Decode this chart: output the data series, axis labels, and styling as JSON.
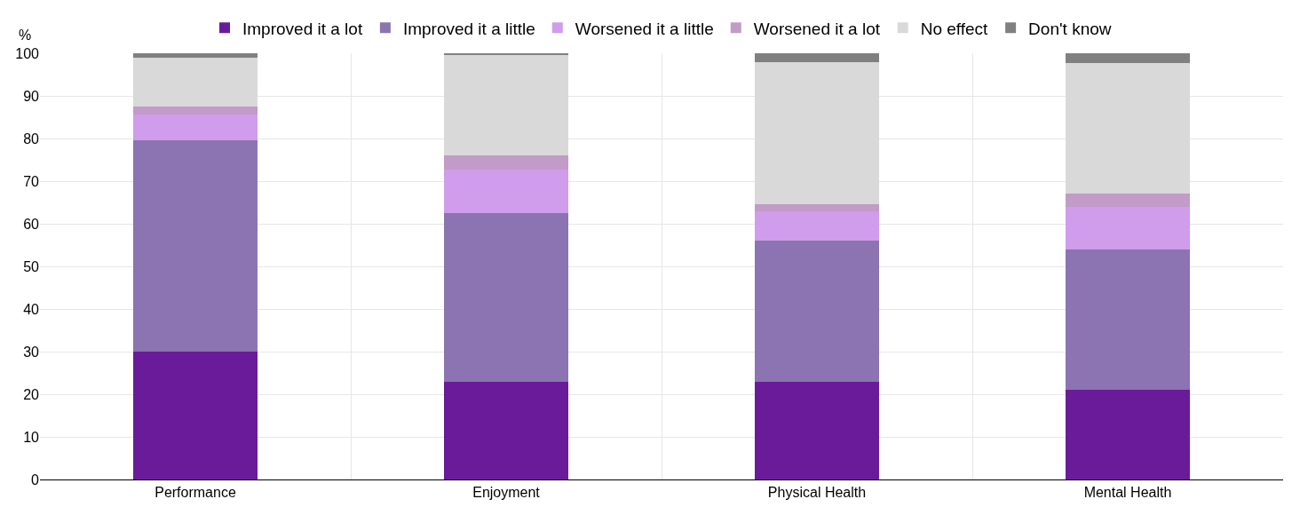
{
  "chart_data": {
    "type": "bar",
    "stacked": true,
    "ylabel": "%",
    "categories": [
      "Performance",
      "Enjoyment",
      "Physical Health",
      "Mental Health"
    ],
    "series": [
      {
        "name": "Improved it a lot",
        "color": "#6a1b9a",
        "values": [
          30,
          23,
          23,
          21
        ]
      },
      {
        "name": "Improved it a little",
        "color": "#8b74b1",
        "values": [
          49.5,
          39.6,
          33,
          33
        ]
      },
      {
        "name": "Worsened it a little",
        "color": "#d09cec",
        "values": [
          6.2,
          10.2,
          7,
          10
        ]
      },
      {
        "name": "Worsened it a lot",
        "color": "#c29bc8",
        "values": [
          1.9,
          3.2,
          1.5,
          3
        ]
      },
      {
        "name": "No effect",
        "color": "#d9d9d9",
        "values": [
          11.3,
          23.5,
          33.5,
          30.8
        ]
      },
      {
        "name": "Don't know",
        "color": "#808080",
        "values": [
          1.1,
          0.5,
          2,
          2.2
        ]
      }
    ],
    "ylim": [
      0,
      100
    ],
    "yticks": [
      0,
      10,
      20,
      30,
      40,
      50,
      60,
      70,
      80,
      90,
      100
    ],
    "grid": true,
    "legend": "top"
  }
}
